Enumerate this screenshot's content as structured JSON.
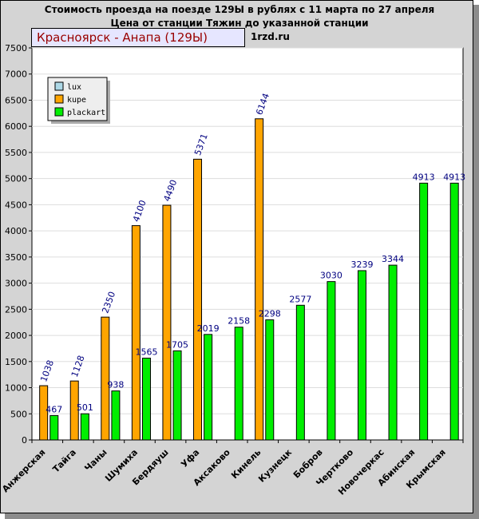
{
  "header": {
    "title_line1": "Стоимость проезда на поезде 129Ы в рублях с 11 марта по 27 апреля",
    "title_line2": "Цена от станции Тяжин до указанной станции",
    "source": "1rzd.ru",
    "route_label": "Красноярск - Анапа (129Ы)"
  },
  "chart_data": {
    "type": "bar",
    "categories": [
      "Анжерская",
      "Тайга",
      "Чаны",
      "Шумиха",
      "Бердяуш",
      "Уфа",
      "Аксаково",
      "Кинель",
      "Кузнецк",
      "Бобров",
      "Чертково",
      "Новочеркас",
      "Абинская",
      "Крымская"
    ],
    "series": [
      {
        "name": "lux",
        "color": "#add8e6",
        "values": [
          null,
          null,
          null,
          null,
          null,
          null,
          null,
          null,
          null,
          null,
          null,
          null,
          null,
          null
        ]
      },
      {
        "name": "kupe",
        "color": "#ffa500",
        "values": [
          1038,
          1128,
          2350,
          4100,
          4490,
          5371,
          null,
          6144,
          null,
          null,
          null,
          null,
          null,
          null
        ]
      },
      {
        "name": "plackart",
        "color": "#00ee00",
        "values": [
          467,
          501,
          938,
          1565,
          1705,
          2019,
          2158,
          2298,
          2577,
          3030,
          3239,
          3344,
          4913,
          4913
        ]
      }
    ],
    "yticks": [
      "0",
      "500",
      "1000",
      "1500",
      "2000",
      "2500",
      "3000",
      "3500",
      "4000",
      "4500",
      "5000",
      "5500",
      "6000",
      "6500",
      "7000",
      "7500"
    ],
    "ylim": [
      0,
      7500
    ],
    "grid": true,
    "legend_position": "top-left",
    "label_color": "#000080"
  }
}
